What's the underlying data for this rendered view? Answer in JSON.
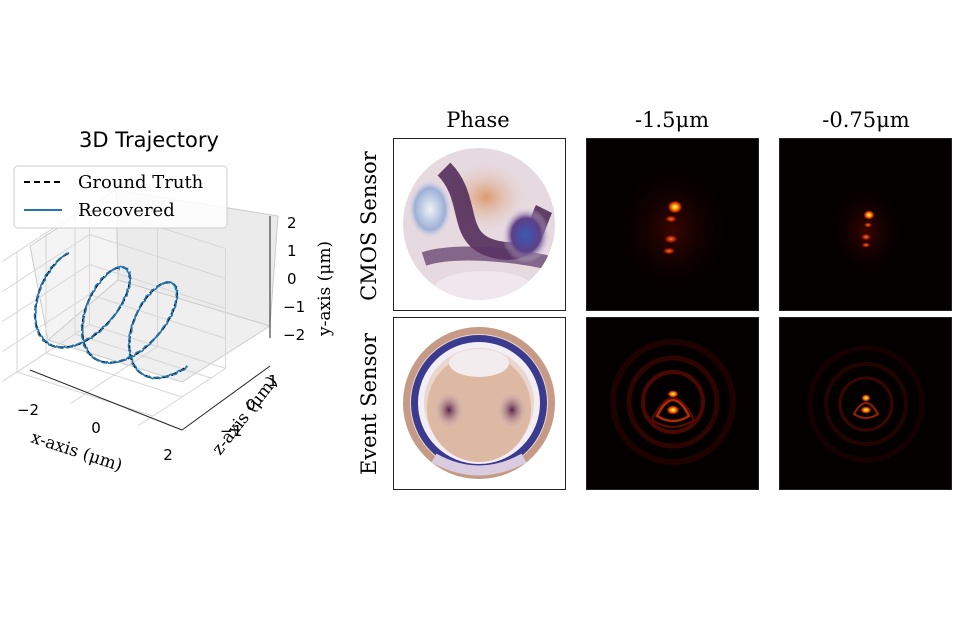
{
  "chart_data": [
    {
      "type": "line3d",
      "title": "3D Trajectory",
      "xlabel": "x-axis (μm)",
      "ylabel": "y-axis (μm)",
      "zlabel": "z-axis (μm)",
      "xticks": [
        "−2",
        "0",
        "2"
      ],
      "yticks": [
        "2",
        "1",
        "0",
        "−1",
        "−2"
      ],
      "zticks": [
        "1",
        "0",
        "−1"
      ],
      "xlim": [
        -2,
        2
      ],
      "ylim": [
        -2,
        2
      ],
      "zlim": [
        -1.5,
        1.5
      ],
      "legend": "top-left",
      "series": [
        {
          "name": "Ground Truth",
          "color": "#000000",
          "style": "dashed"
        },
        {
          "name": "Recovered",
          "color": "#1f77b4",
          "style": "solid"
        }
      ]
    },
    {
      "type": "image-grid",
      "columns": [
        "Phase",
        "-1.5μm",
        "-0.75μm"
      ],
      "rows": [
        "CMOS Sensor",
        "Event Sensor"
      ],
      "colormaps": {
        "phase": "twilight",
        "psf": "hot"
      }
    }
  ]
}
